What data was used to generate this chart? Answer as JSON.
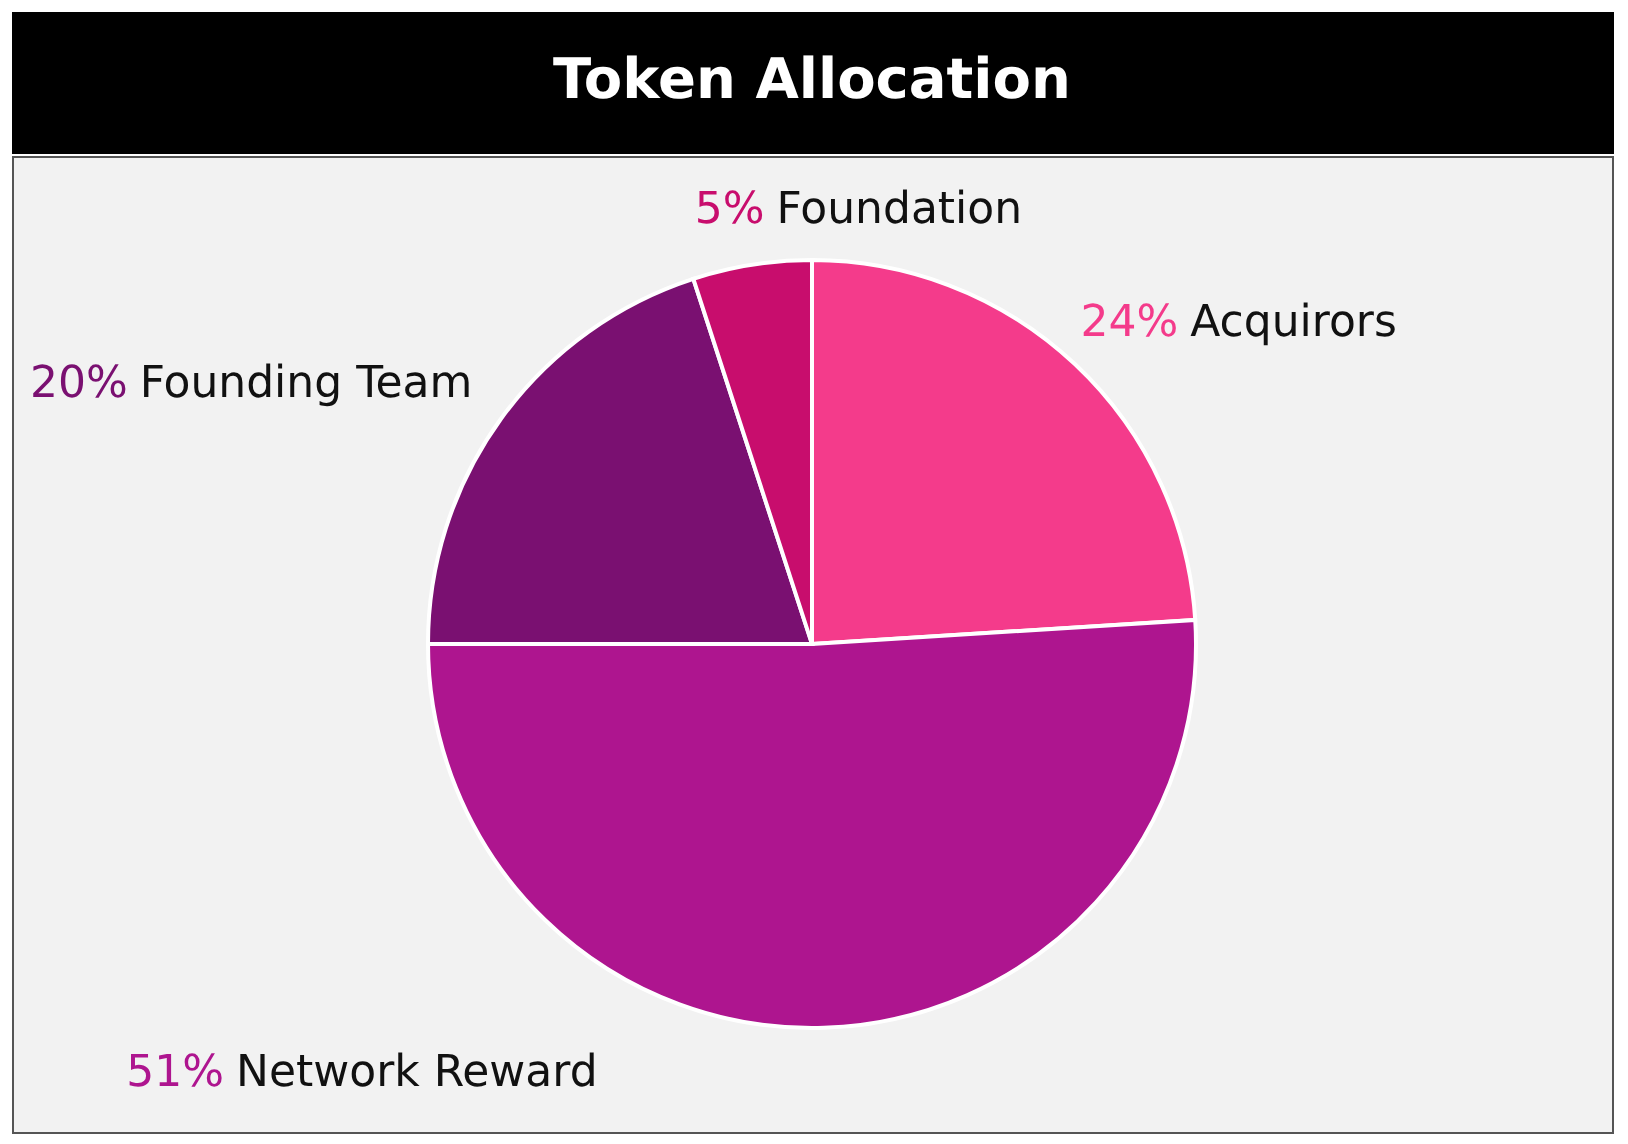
{
  "chart_data": {
    "type": "pie",
    "title": "Token Allocation",
    "categories": [
      "Acquirors",
      "Network Reward",
      "Founding Team",
      "Foundation"
    ],
    "values": [
      24,
      51,
      20,
      5
    ],
    "colors": [
      "#f43b8b",
      "#ae158f",
      "#7a1071",
      "#c80d6d"
    ],
    "value_labels": [
      "24%",
      "51%",
      "20%",
      "5%"
    ],
    "legend": false
  }
}
